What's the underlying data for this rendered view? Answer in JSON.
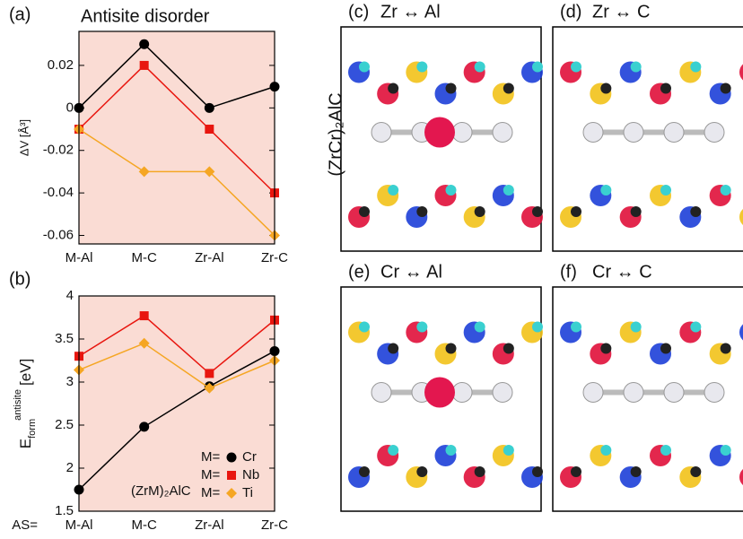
{
  "chart_data": [
    {
      "type": "line",
      "panel_label": "(a)",
      "title": "Antisite disorder",
      "ylabel": "ΔV [Å³]",
      "categories": [
        "M-Al",
        "M-C",
        "Zr-Al",
        "Zr-C"
      ],
      "series": [
        {
          "name": "Cr",
          "color": "#000000",
          "marker": "circle",
          "values": [
            0,
            0.03,
            0,
            0.01
          ]
        },
        {
          "name": "Nb",
          "color": "#e8160f",
          "marker": "square",
          "values": [
            -0.01,
            0.02,
            -0.01,
            -0.04
          ]
        },
        {
          "name": "Ti",
          "color": "#f5a623",
          "marker": "diamond",
          "values": [
            -0.01,
            -0.03,
            -0.03,
            -0.06
          ]
        }
      ],
      "ylim": [
        -0.064,
        0.036
      ],
      "yticks": [
        -0.06,
        -0.04,
        -0.02,
        0,
        0.02
      ],
      "background": "#fadcd4"
    },
    {
      "type": "line",
      "panel_label": "(b)",
      "ylabel": {
        "base": "E",
        "sub": "form",
        "sup": "antisite",
        "unit": "[eV]"
      },
      "xlabel": "AS=",
      "annotation": "(ZrM)₂AlC",
      "legend_prefix": "M=",
      "legend": "lower right",
      "categories": [
        "M-Al",
        "M-C",
        "Zr-Al",
        "Zr-C"
      ],
      "series": [
        {
          "name": "Cr",
          "color": "#000000",
          "marker": "circle",
          "values": [
            1.75,
            2.48,
            2.95,
            3.36
          ]
        },
        {
          "name": "Nb",
          "color": "#e8160f",
          "marker": "square",
          "values": [
            3.3,
            3.77,
            3.1,
            3.72
          ]
        },
        {
          "name": "Ti",
          "color": "#f5a623",
          "marker": "diamond",
          "values": [
            3.14,
            3.45,
            2.93,
            3.25
          ]
        }
      ],
      "ylim": [
        1.5,
        4
      ],
      "yticks": [
        1.5,
        2,
        2.5,
        3,
        3.5,
        4
      ],
      "background": "#fadcd4"
    }
  ],
  "side_label": "(ZrCr)₂AlC",
  "panels": [
    {
      "label": "(c)",
      "title": "Zr ↔ Al"
    },
    {
      "label": "(d)",
      "title": "Zr ↔ C"
    },
    {
      "label": "(e)",
      "title": "Cr ↔ Al"
    },
    {
      "label": "(f)",
      "title": "Cr ↔ C"
    }
  ]
}
